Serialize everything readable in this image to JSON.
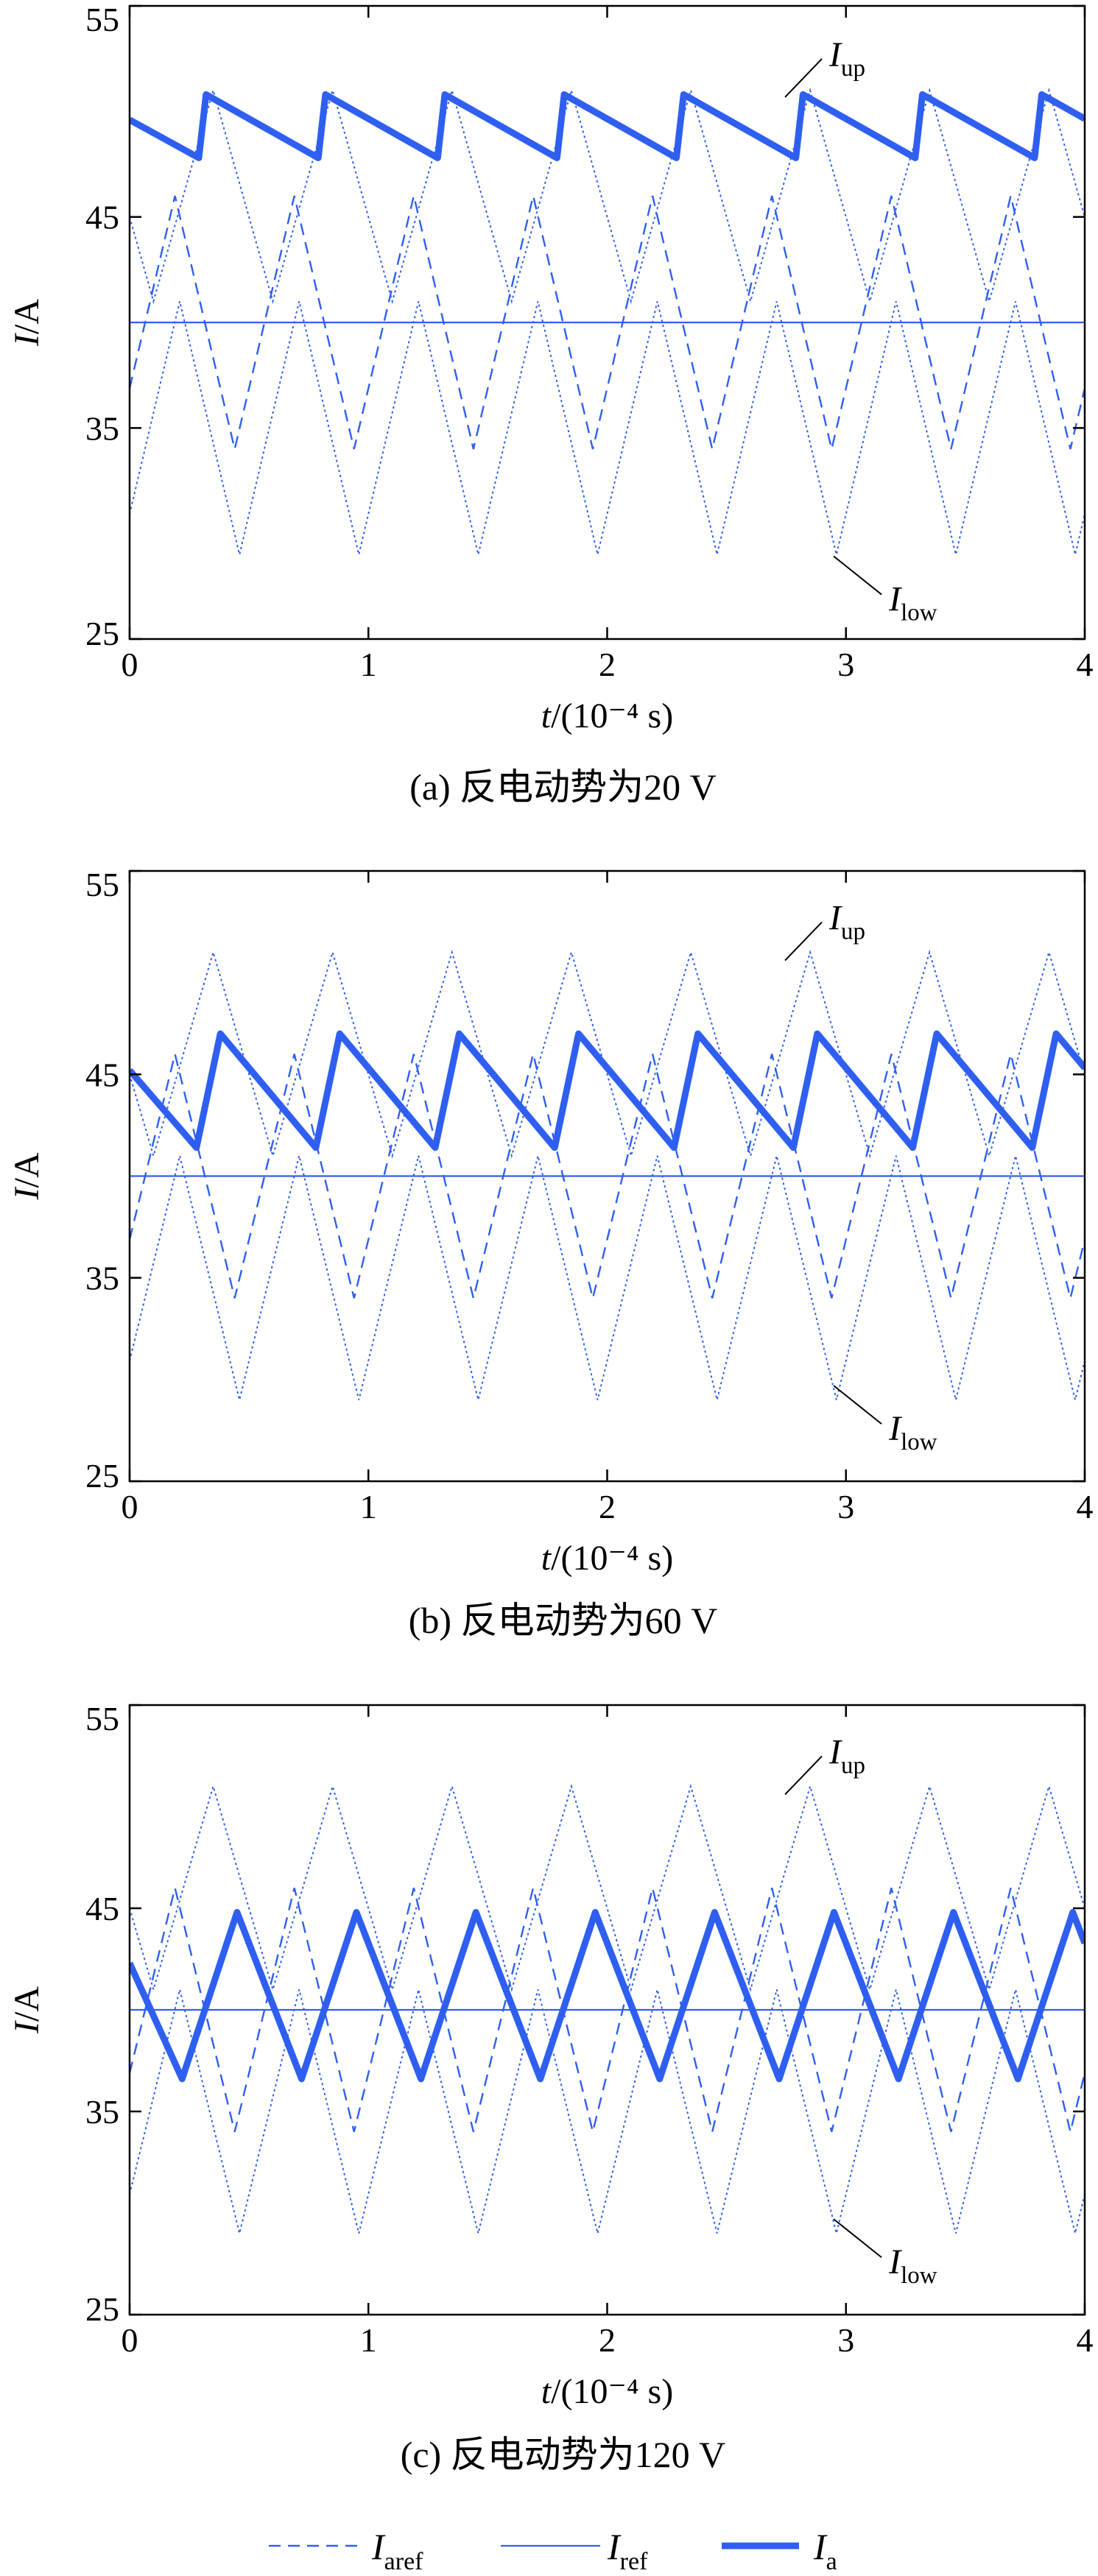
{
  "chart_data": [
    {
      "type": "line",
      "caption": "(a) 反电动势为20 V",
      "xlabel": "t/(10⁻⁴ s)",
      "xlabel_var": "t",
      "xlabel_unit": "/(10⁻⁴ s)",
      "ylabel": "I/A",
      "ylabel_var": "I",
      "ylabel_unit": "/A",
      "xlim": [
        0,
        4
      ],
      "ylim": [
        25,
        55
      ],
      "xticks": [
        "0",
        "1",
        "2",
        "3",
        "4"
      ],
      "yticks": [
        "25",
        "35",
        "45",
        "55"
      ],
      "grid": false,
      "annotations": [
        {
          "main": "I",
          "sub": "up",
          "x": 2.93,
          "y": 52.7
        },
        {
          "main": "I",
          "sub": "low",
          "x": 3.18,
          "y": 26.9
        }
      ],
      "series": [
        {
          "key": "Iup",
          "band": "upper",
          "period": 0.5,
          "min": 41,
          "max": 51,
          "phase_at_zero": 0.8
        },
        {
          "key": "Iaref",
          "band": "aref",
          "period": 0.5,
          "min": 34,
          "max": 46,
          "phase_at_zero": 0.12
        },
        {
          "key": "Ilow",
          "band": "lower",
          "period": 0.5,
          "min": 29,
          "max": 41,
          "phase_at_zero": 0.08
        },
        {
          "key": "Iref",
          "value": 40
        },
        {
          "key": "Ia",
          "period": 0.5,
          "max": 50.8,
          "min": 47.8,
          "start": 49.6,
          "peak_x": [
            0.32,
            0.82,
            1.32,
            1.82,
            2.32,
            2.82,
            3.32,
            3.82
          ],
          "rise": 0.03
        }
      ]
    },
    {
      "type": "line",
      "caption": "(b) 反电动势为60 V",
      "xlabel": "t/(10⁻⁴ s)",
      "xlabel_var": "t",
      "xlabel_unit": "/(10⁻⁴ s)",
      "ylabel": "I/A",
      "ylabel_var": "I",
      "ylabel_unit": "/A",
      "xlim": [
        0,
        4
      ],
      "ylim": [
        25,
        55
      ],
      "xticks": [
        "0",
        "1",
        "2",
        "3",
        "4"
      ],
      "yticks": [
        "25",
        "35",
        "45",
        "55"
      ],
      "grid": false,
      "annotations": [
        {
          "main": "I",
          "sub": "up",
          "x": 2.93,
          "y": 52.7
        },
        {
          "main": "I",
          "sub": "low",
          "x": 3.18,
          "y": 27.6
        }
      ],
      "series": [
        {
          "key": "Iup",
          "band": "upper",
          "period": 0.5,
          "min": 41,
          "max": 51,
          "phase_at_zero": 0.8
        },
        {
          "key": "Iaref",
          "band": "aref",
          "period": 0.5,
          "min": 34,
          "max": 46,
          "phase_at_zero": 0.12
        },
        {
          "key": "Ilow",
          "band": "lower",
          "period": 0.5,
          "min": 29,
          "max": 41,
          "phase_at_zero": 0.08
        },
        {
          "key": "Iref",
          "value": 40
        },
        {
          "key": "Ia",
          "period": 0.5,
          "max": 47.0,
          "min": 41.4,
          "start": 45.2,
          "peak_x": [
            0.38,
            0.88,
            1.38,
            1.88,
            2.38,
            2.88,
            3.38,
            3.88
          ],
          "rise": 0.1
        }
      ]
    },
    {
      "type": "line",
      "caption": "(c) 反电动势为120 V",
      "xlabel": "t/(10⁻⁴ s)",
      "xlabel_var": "t",
      "xlabel_unit": "/(10⁻⁴ s)",
      "ylabel": "I/A",
      "ylabel_var": "I",
      "ylabel_unit": "/A",
      "xlim": [
        0,
        4
      ],
      "ylim": [
        25,
        55
      ],
      "xticks": [
        "0",
        "1",
        "2",
        "3",
        "4"
      ],
      "yticks": [
        "25",
        "35",
        "45",
        "55"
      ],
      "grid": false,
      "annotations": [
        {
          "main": "I",
          "sub": "up",
          "x": 2.93,
          "y": 52.7
        },
        {
          "main": "I",
          "sub": "low",
          "x": 3.18,
          "y": 27.6
        }
      ],
      "series": [
        {
          "key": "Iup",
          "band": "upper",
          "period": 0.5,
          "min": 41,
          "max": 51,
          "phase_at_zero": 0.8
        },
        {
          "key": "Iaref",
          "band": "aref",
          "period": 0.5,
          "min": 34,
          "max": 46,
          "phase_at_zero": 0.12
        },
        {
          "key": "Ilow",
          "band": "lower",
          "period": 0.5,
          "min": 29,
          "max": 41,
          "phase_at_zero": 0.08
        },
        {
          "key": "Iref",
          "value": 40
        },
        {
          "key": "Ia",
          "period": 0.5,
          "max": 44.8,
          "min": 36.6,
          "start": 42.3,
          "peak_x": [
            0.45,
            0.95,
            1.45,
            1.95,
            2.45,
            2.95,
            3.45,
            3.95
          ],
          "rise": 0.23
        }
      ]
    }
  ],
  "legend": {
    "placement": "bottom",
    "items": [
      {
        "key": "Iaref",
        "main": "I",
        "sub": "aref",
        "style": "dashed"
      },
      {
        "key": "Iref",
        "main": "I",
        "sub": "ref",
        "style": "thin"
      },
      {
        "key": "Ia",
        "main": "I",
        "sub": "a",
        "style": "thick"
      }
    ]
  },
  "colors": {
    "line": "#2f5ff0",
    "axis": "#000000",
    "background": "#ffffff"
  }
}
